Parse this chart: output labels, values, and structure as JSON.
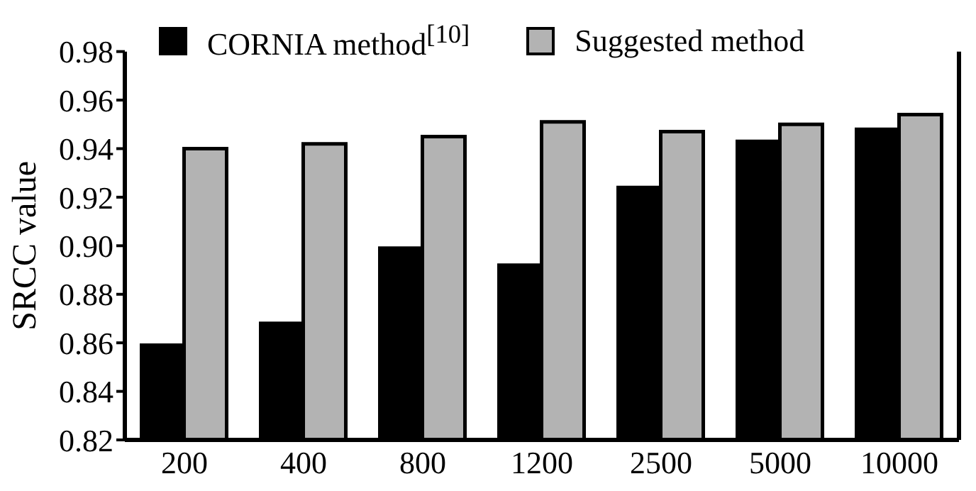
{
  "chart_data": {
    "type": "bar",
    "ylabel": "SRCC value",
    "categories": [
      "200",
      "400",
      "800",
      "1200",
      "2500",
      "5000",
      "10000"
    ],
    "series": [
      {
        "name": "CORNIA method$^{[10]}$",
        "color": "#000000",
        "values": [
          0.859,
          0.868,
          0.899,
          0.892,
          0.924,
          0.943,
          0.948
        ]
      },
      {
        "name": "Suggested method",
        "color": "#b3b3b3",
        "values": [
          0.94,
          0.942,
          0.945,
          0.951,
          0.947,
          0.95,
          0.954
        ]
      }
    ],
    "ylim": [
      0.82,
      0.98
    ],
    "yticks": [
      {
        "value": 0.82,
        "label": "0.82"
      },
      {
        "value": 0.84,
        "label": "0.84"
      },
      {
        "value": 0.86,
        "label": "0.86"
      },
      {
        "value": 0.88,
        "label": "0.88"
      },
      {
        "value": 0.9,
        "label": "0.90"
      },
      {
        "value": 0.92,
        "label": "0.92"
      },
      {
        "value": 0.94,
        "label": "0.94"
      },
      {
        "value": 0.96,
        "label": "0.96"
      },
      {
        "value": 0.98,
        "label": "0.98"
      }
    ],
    "grid": false,
    "legend": "top"
  }
}
